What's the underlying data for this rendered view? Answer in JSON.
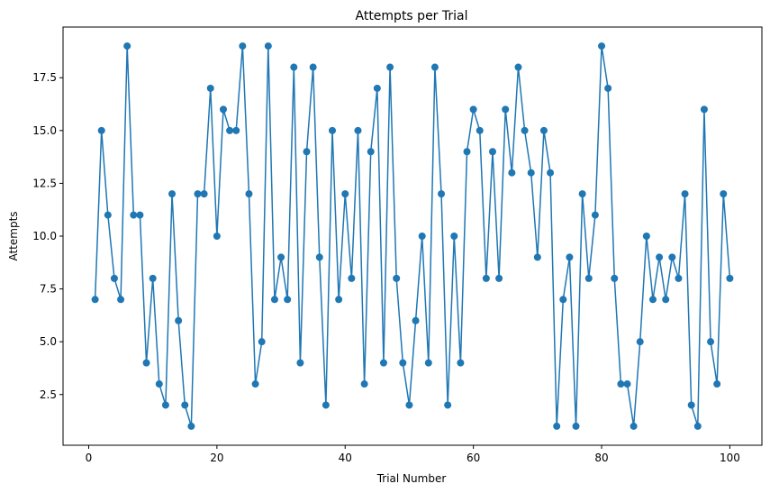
{
  "chart_data": {
    "type": "line",
    "title": "Attempts per Trial",
    "xlabel": "Trial Number",
    "ylabel": "Attempts",
    "xlim": [
      -4,
      105
    ],
    "ylim": [
      0.1,
      19.9
    ],
    "xticks": [
      0,
      20,
      40,
      60,
      80,
      100
    ],
    "yticks": [
      2.5,
      5.0,
      7.5,
      10.0,
      12.5,
      15.0,
      17.5
    ],
    "ytick_labels": [
      "2.5",
      "5.0",
      "7.5",
      "10.0",
      "12.5",
      "15.0",
      "17.5"
    ],
    "grid": false,
    "line_color": "#1f77b4",
    "marker": "circle",
    "x": [
      1,
      2,
      3,
      4,
      5,
      6,
      7,
      8,
      9,
      10,
      11,
      12,
      13,
      14,
      15,
      16,
      17,
      18,
      19,
      20,
      21,
      22,
      23,
      24,
      25,
      26,
      27,
      28,
      29,
      30,
      31,
      32,
      33,
      34,
      35,
      36,
      37,
      38,
      39,
      40,
      41,
      42,
      43,
      44,
      45,
      46,
      47,
      48,
      49,
      50,
      51,
      52,
      53,
      54,
      55,
      56,
      57,
      58,
      59,
      60,
      61,
      62,
      63,
      64,
      65,
      66,
      67,
      68,
      69,
      70,
      71,
      72,
      73,
      74,
      75,
      76,
      77,
      78,
      79,
      80,
      81,
      82,
      83,
      84,
      85,
      86,
      87,
      88,
      89,
      90,
      91,
      92,
      93,
      94,
      95,
      96,
      97,
      98,
      99,
      100
    ],
    "y": [
      7,
      15,
      11,
      8,
      7,
      19,
      11,
      11,
      4,
      8,
      3,
      2,
      12,
      6,
      2,
      1,
      12,
      12,
      17,
      10,
      16,
      15,
      15,
      19,
      12,
      3,
      5,
      19,
      7,
      9,
      7,
      18,
      4,
      14,
      18,
      9,
      2,
      15,
      7,
      12,
      8,
      15,
      3,
      14,
      17,
      4,
      18,
      8,
      4,
      2,
      6,
      10,
      4,
      18,
      12,
      2,
      10,
      4,
      14,
      16,
      15,
      8,
      14,
      8,
      16,
      13,
      18,
      15,
      13,
      9,
      15,
      13,
      1,
      7,
      9,
      1,
      12,
      8,
      11,
      19,
      17,
      8,
      3,
      3,
      1,
      5,
      10,
      7,
      9,
      7,
      9,
      8,
      12,
      2,
      1,
      16,
      5,
      3,
      12,
      8
    ]
  }
}
